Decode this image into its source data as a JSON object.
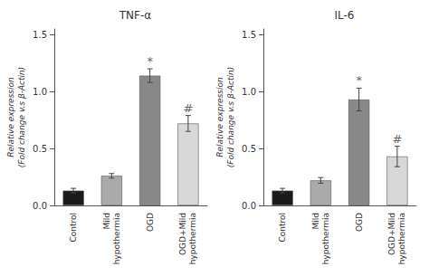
{
  "chart_data": [
    {
      "type": "bar",
      "title": "TNF-α",
      "ylabel": "Relative expression\n(Fold change v.s β-Actin)",
      "categories": [
        "Control",
        "Mild\nhypothermia",
        "OGD",
        "OGD+Mild\nhypothermia"
      ],
      "values": [
        0.13,
        0.26,
        1.14,
        0.72
      ],
      "errors": [
        0.02,
        0.02,
        0.06,
        0.07
      ],
      "colors": [
        "#1a1a1a",
        "#aaaaaa",
        "#888888",
        "#d8d8d8"
      ],
      "ylim": [
        0,
        1.55
      ],
      "yticks": [
        {
          "value": 0.0,
          "label": "0.0"
        },
        {
          "value": 0.5,
          "label": "0.5"
        },
        {
          "value": 1.0,
          "label": "1.0"
        },
        {
          "value": 1.5,
          "label": "1.5"
        }
      ],
      "grid": false,
      "annotations": [
        {
          "text": "*",
          "category": "OGD"
        },
        {
          "text": "#",
          "category": "OGD+Mild\nhypothermia"
        }
      ]
    },
    {
      "type": "bar",
      "title": "IL-6",
      "ylabel": "Relative expression\n(Fold change v.s β-Actin)",
      "categories": [
        "Control",
        "Mild\nhypothermia",
        "OGD",
        "OGD+Mild\nhypothermia"
      ],
      "values": [
        0.13,
        0.22,
        0.93,
        0.43
      ],
      "errors": [
        0.02,
        0.025,
        0.1,
        0.09
      ],
      "colors": [
        "#1a1a1a",
        "#aaaaaa",
        "#888888",
        "#d8d8d8"
      ],
      "ylim": [
        0,
        1.55
      ],
      "yticks": [
        {
          "value": 0.0,
          "label": "0.0"
        },
        {
          "value": 0.5,
          "label": "0.5"
        },
        {
          "value": 1.0,
          "label": "1.0"
        },
        {
          "value": 1.5,
          "label": "1.5"
        }
      ],
      "grid": false,
      "annotations": [
        {
          "text": "*",
          "category": "OGD"
        },
        {
          "text": "#",
          "category": "OGD+Mild\nhypothermia"
        }
      ]
    }
  ]
}
